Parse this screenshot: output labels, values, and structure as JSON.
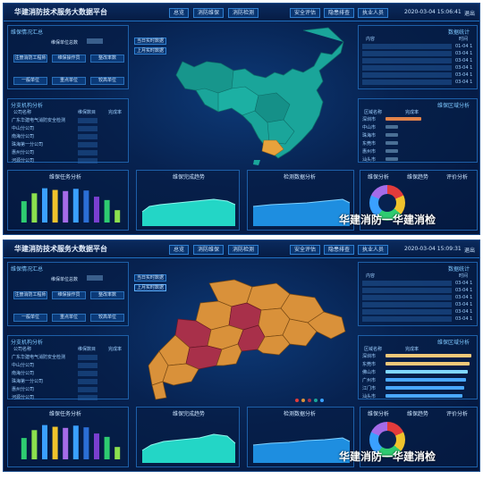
{
  "title": "华建消防技术服务大数据平台",
  "nav": [
    "总览",
    "消防维保",
    "消防检测",
    "安全评估",
    "隐患排查",
    "执业人员"
  ],
  "panel1": {
    "datetime": "2020-03-04 15:06:41",
    "exit": "退出",
    "left_top_title": "维保情况汇总",
    "left_top_field": "维保单位总数",
    "left_buttons": [
      "注册消防工程师",
      "维保操作员",
      "整改率数"
    ],
    "left_buttons2": [
      "一般单位",
      "重点单位",
      "较高单位"
    ],
    "branch_title": "分支机构分析",
    "branch_headers": [
      "公司名称",
      "维保数目",
      "完成率"
    ],
    "branches": [
      "广东华建电气消防安全检测",
      "中山分公司",
      "南海分公司",
      "珠海第一分公司",
      "惠州分公司",
      "河源分公司"
    ],
    "map_buttons": [
      "当日实时数据",
      "上月实时数据"
    ],
    "right_top_title": "数据统计",
    "right_headers": [
      "内容",
      "时间"
    ],
    "right_rows": [
      "01-04 1",
      "03-04 1",
      "03-04 1",
      "03-04 1",
      "03-04 1",
      "03-04 1"
    ],
    "right_mid_title": "维保区域分析",
    "right_mid_headers": [
      "区域名称",
      "完成率"
    ],
    "regions": [
      "深圳市",
      "中山市",
      "珠海市",
      "东莞市",
      "惠州市",
      "汕头市"
    ],
    "bottom_titles": [
      "维保任务分析",
      "维保完成趋势",
      "检测数据分析",
      "维保分析",
      "维保趋势",
      "评价分析"
    ]
  },
  "panel2": {
    "datetime": "2020-03-04 15:09:31",
    "exit": "退出",
    "left_top_title": "维保情况汇总",
    "left_top_field": "维保单位总数",
    "left_buttons": [
      "注册消防工程师",
      "维保操作员",
      "整改率数"
    ],
    "left_buttons2": [
      "一般单位",
      "重点单位",
      "较高单位"
    ],
    "branch_title": "分支机构分析",
    "branch_headers": [
      "公司名称",
      "维保数目",
      "完成率"
    ],
    "branches": [
      "广东华建电气消防安全检测",
      "中山分公司",
      "南海分公司",
      "珠海第一分公司",
      "惠州分公司",
      "河源分公司"
    ],
    "map_buttons": [
      "当日实时数据",
      "上月实时数据"
    ],
    "right_top_title": "数据统计",
    "right_headers": [
      "内容",
      "时间"
    ],
    "right_rows": [
      "03-04 1",
      "03-04 1",
      "03-04 1",
      "03-04 1",
      "03-04 1",
      "03-04 1"
    ],
    "right_mid_title": "维保区域分析",
    "right_mid_headers": [
      "区域名称",
      "完成率"
    ],
    "regions": [
      "深圳市",
      "东莞市",
      "佛山市",
      "广州市",
      "江门市",
      "汕头市"
    ],
    "bottom_titles": [
      "维保任务分析",
      "维保完成趋势",
      "检测数据分析",
      "维保分析",
      "维保趋势",
      "评价分析"
    ]
  },
  "watermark": "华建消防一华建消检",
  "chart_data": [
    {
      "type": "bar",
      "title": "维保任务分析",
      "values": [
        38,
        52,
        61,
        58,
        56,
        60,
        57,
        46,
        40,
        22
      ]
    },
    {
      "type": "area",
      "title": "维保完成趋势"
    },
    {
      "type": "area",
      "title": "检测数据分析"
    }
  ],
  "colors": {
    "accent": "#1f6fc0",
    "panel": "#072250",
    "map_china": "#1aa59a",
    "map_gd_orange": "#d9913a",
    "map_gd_red": "#a8304a"
  }
}
